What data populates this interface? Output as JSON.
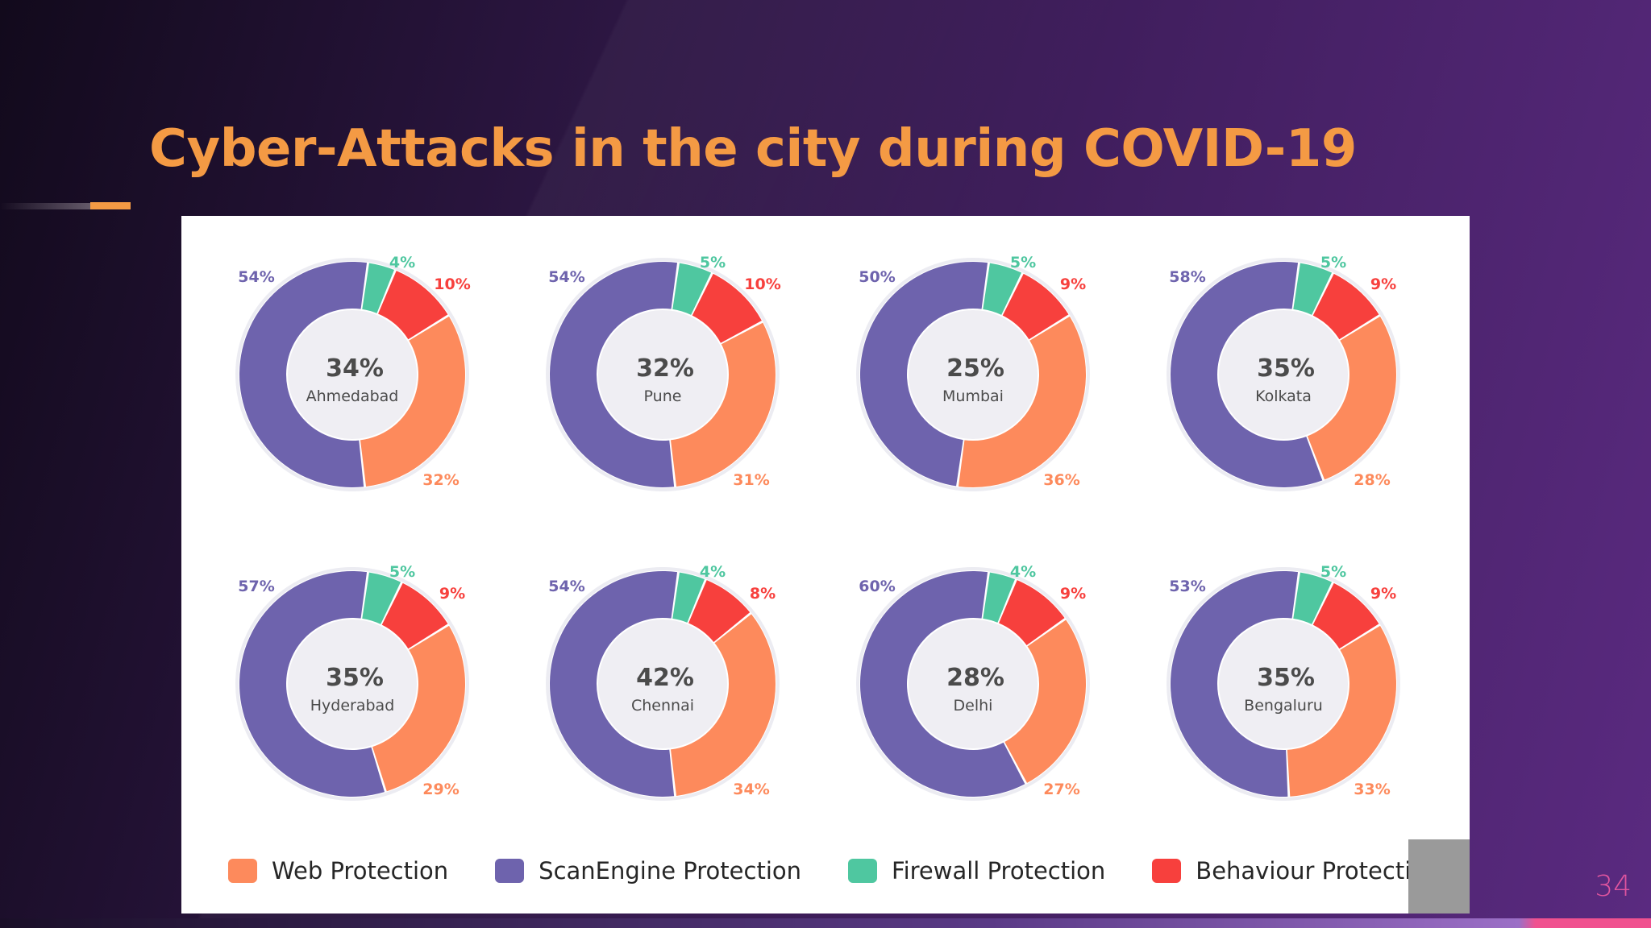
{
  "slide": {
    "title": "Cyber-Attacks in the city during COVID-19",
    "page_number": "34"
  },
  "colors": {
    "web": "#fd8a5c",
    "scan": "#6e63ad",
    "firewall": "#4fc7a0",
    "behaviour": "#f7403d",
    "title": "#f49a44",
    "page_number": "#e0559f"
  },
  "legend": [
    {
      "label": "Web Protection",
      "color": "#fd8a5c"
    },
    {
      "label": "ScanEngine Protection",
      "color": "#6e63ad"
    },
    {
      "label": "Firewall Protection",
      "color": "#4fc7a0"
    },
    {
      "label": "Behaviour Protection",
      "color": "#f7403d"
    }
  ],
  "chart_data": {
    "type": "pie",
    "title": "Cyber-Attacks in the city during COVID-19",
    "variant": "donut",
    "series_names": [
      "Firewall Protection",
      "Behaviour Protection",
      "Web Protection",
      "ScanEngine Protection"
    ],
    "charts": [
      {
        "city": "Ahmedabad",
        "center_value": "34%",
        "values": {
          "firewall": 4,
          "behaviour": 10,
          "web": 32,
          "scan": 54
        }
      },
      {
        "city": "Pune",
        "center_value": "32%",
        "values": {
          "firewall": 5,
          "behaviour": 10,
          "web": 31,
          "scan": 54
        }
      },
      {
        "city": "Mumbai",
        "center_value": "25%",
        "values": {
          "firewall": 5,
          "behaviour": 9,
          "web": 36,
          "scan": 50
        }
      },
      {
        "city": "Kolkata",
        "center_value": "35%",
        "values": {
          "firewall": 5,
          "behaviour": 9,
          "web": 28,
          "scan": 58
        }
      },
      {
        "city": "Hyderabad",
        "center_value": "35%",
        "values": {
          "firewall": 5,
          "behaviour": 9,
          "web": 29,
          "scan": 57
        }
      },
      {
        "city": "Chennai",
        "center_value": "42%",
        "values": {
          "firewall": 4,
          "behaviour": 8,
          "web": 34,
          "scan": 54
        }
      },
      {
        "city": "Delhi",
        "center_value": "28%",
        "values": {
          "firewall": 4,
          "behaviour": 9,
          "web": 27,
          "scan": 60
        }
      },
      {
        "city": "Bengaluru",
        "center_value": "35%",
        "values": {
          "firewall": 5,
          "behaviour": 9,
          "web": 33,
          "scan": 53
        }
      }
    ]
  }
}
